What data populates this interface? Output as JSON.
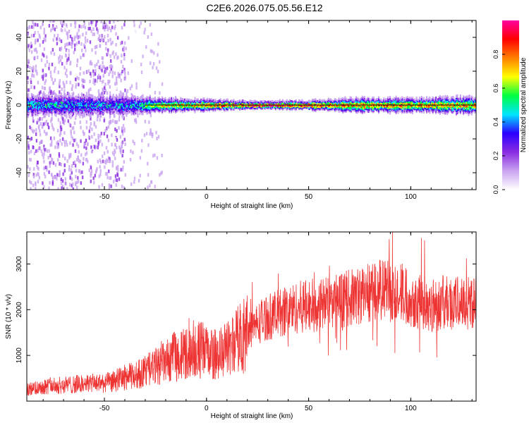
{
  "title": "C2E6.2026.075.05.56.E12",
  "chart_data": [
    {
      "type": "heatmap",
      "xlabel": "Height of straight line (km)",
      "ylabel": "Frequency (Hz)",
      "xlim": [
        -88,
        132
      ],
      "ylim": [
        -50,
        50
      ],
      "x_ticks": [
        -50,
        0,
        50,
        100
      ],
      "y_ticks": [
        -40,
        -20,
        0,
        20,
        40
      ],
      "colorbar": {
        "label": "Normalized spectral amplitude",
        "range": [
          0.0,
          1.0
        ],
        "ticks": [
          "0.0",
          "0.2",
          "0.4",
          "0.6",
          "0.8"
        ],
        "colormap": [
          "#ffffff",
          "#c9a4f0",
          "#8a2be2",
          "#2a00ff",
          "#00e5ff",
          "#00ff40",
          "#ffff00",
          "#ff8000",
          "#ff0000",
          "#ff00a0"
        ]
      },
      "peak_line_frequency_hz": 0,
      "profile": [
        {
          "x": -88,
          "spread_hz": 4,
          "peak_amplitude": 0.5
        },
        {
          "x": -60,
          "spread_hz": 4,
          "peak_amplitude": 0.45
        },
        {
          "x": -40,
          "spread_hz": 4,
          "peak_amplitude": 0.45
        },
        {
          "x": -30,
          "spread_hz": 3,
          "peak_amplitude": 0.6
        },
        {
          "x": -20,
          "spread_hz": 2.5,
          "peak_amplitude": 0.7
        },
        {
          "x": 0,
          "spread_hz": 2,
          "peak_amplitude": 0.8
        },
        {
          "x": 25,
          "spread_hz": 1.2,
          "peak_amplitude": 0.95
        },
        {
          "x": 50,
          "spread_hz": 1.5,
          "peak_amplitude": 0.9
        },
        {
          "x": 75,
          "spread_hz": 2.5,
          "peak_amplitude": 0.8
        },
        {
          "x": 100,
          "spread_hz": 2.5,
          "peak_amplitude": 0.8
        },
        {
          "x": 132,
          "spread_hz": 3,
          "peak_amplitude": 0.75
        }
      ]
    },
    {
      "type": "line",
      "xlabel": "Height of straight line (km)",
      "ylabel": "SNR (10 * v/v)",
      "xlim": [
        -88,
        132
      ],
      "ylim": [
        0,
        3700
      ],
      "x_ticks": [
        -50,
        0,
        50,
        100
      ],
      "y_ticks": [
        1000,
        2000,
        3000
      ],
      "series": [
        {
          "color": "#ee3333",
          "x": [
            -88,
            -80,
            -70,
            -60,
            -50,
            -45,
            -40,
            -35,
            -30,
            -25,
            -20,
            -15,
            -10,
            -5,
            0,
            5,
            10,
            15,
            20,
            25,
            30,
            35,
            40,
            45,
            50,
            55,
            60,
            65,
            70,
            75,
            80,
            85,
            90,
            95,
            100,
            105,
            110,
            115,
            120,
            125,
            132
          ],
          "y": [
            250,
            320,
            350,
            380,
            400,
            430,
            520,
            560,
            650,
            750,
            850,
            1000,
            1050,
            1150,
            1100,
            1000,
            1150,
            1350,
            1550,
            1700,
            1850,
            1900,
            2000,
            2050,
            2100,
            2100,
            2150,
            2200,
            2250,
            2300,
            2400,
            2450,
            2400,
            2400,
            2250,
            2150,
            2100,
            2150,
            2150,
            2150,
            2200
          ]
        }
      ]
    }
  ]
}
